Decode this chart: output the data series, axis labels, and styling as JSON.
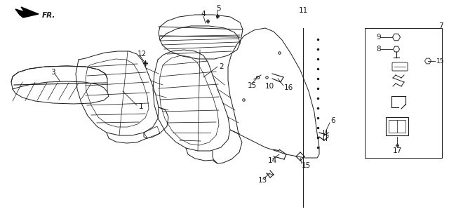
{
  "bg_color": "#ffffff",
  "line_color": "#1a1a1a",
  "lw": 0.7,
  "figsize": [
    6.4,
    3.05
  ],
  "dpi": 100
}
